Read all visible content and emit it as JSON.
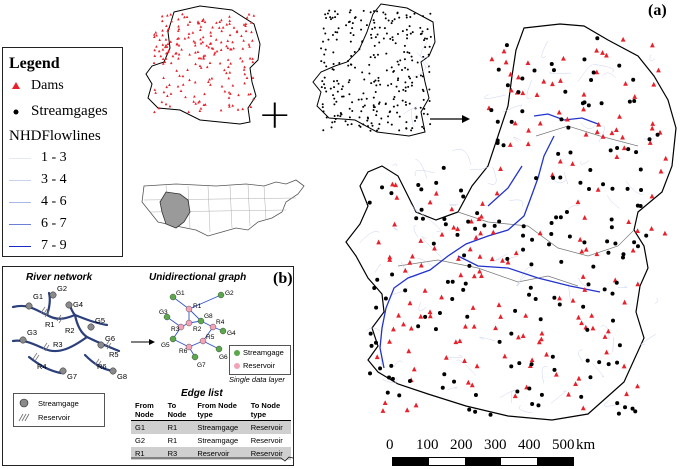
{
  "panel_labels": {
    "a": "(a)",
    "b": "(b)"
  },
  "legend": {
    "title": "Legend",
    "dams": "Dams",
    "streamgages": "Streamgages",
    "nhd_title": "NHDFlowlines",
    "flow_classes": [
      "1 - 3",
      "3 - 4",
      "4 - 6",
      "6 - 7",
      "7 - 9"
    ]
  },
  "operators": {
    "plus": "+",
    "arrow": "→"
  },
  "panel_b": {
    "river_network_title": "River network",
    "graph_title": "Unidirectional graph",
    "single_layer": "Single data layer",
    "inner_legend": {
      "streamgage": "Streamgage",
      "reservoir": "Reservoir"
    },
    "graph_legend": {
      "streamgage": "Streamgage",
      "reservoir": "Reservoir"
    },
    "river_labels": [
      "G1",
      "G2",
      "G3",
      "G4",
      "G5",
      "G6",
      "G7",
      "G8",
      "R1",
      "R2",
      "R3",
      "R4",
      "R5",
      "R6"
    ],
    "graph_labels": [
      "G1",
      "G2",
      "G3",
      "G4",
      "G5",
      "G6",
      "G7",
      "G8",
      "R1",
      "R2",
      "R3",
      "R4",
      "R5",
      "R6"
    ],
    "edge_list_title": "Edge list",
    "edge_headers": [
      "From Node",
      "To Node",
      "From Node type",
      "To Node type"
    ],
    "edge_rows": [
      [
        "G1",
        "R1",
        "Streamgage",
        "Reservoir"
      ],
      [
        "G2",
        "R1",
        "Streamgage",
        "Reservoir"
      ],
      [
        "R1",
        "R3",
        "Reservoir",
        "Reservoir"
      ]
    ]
  },
  "scale_bar": {
    "ticks": [
      "0",
      "100",
      "200",
      "300",
      "400",
      "500"
    ],
    "unit": "km"
  },
  "colors": {
    "dam": "#e8202a",
    "gage": "#000000",
    "river": "#2233cc",
    "node_gage": "#5aa84a",
    "node_res": "#f2a3b8",
    "graph_edge": "#3355cc"
  }
}
